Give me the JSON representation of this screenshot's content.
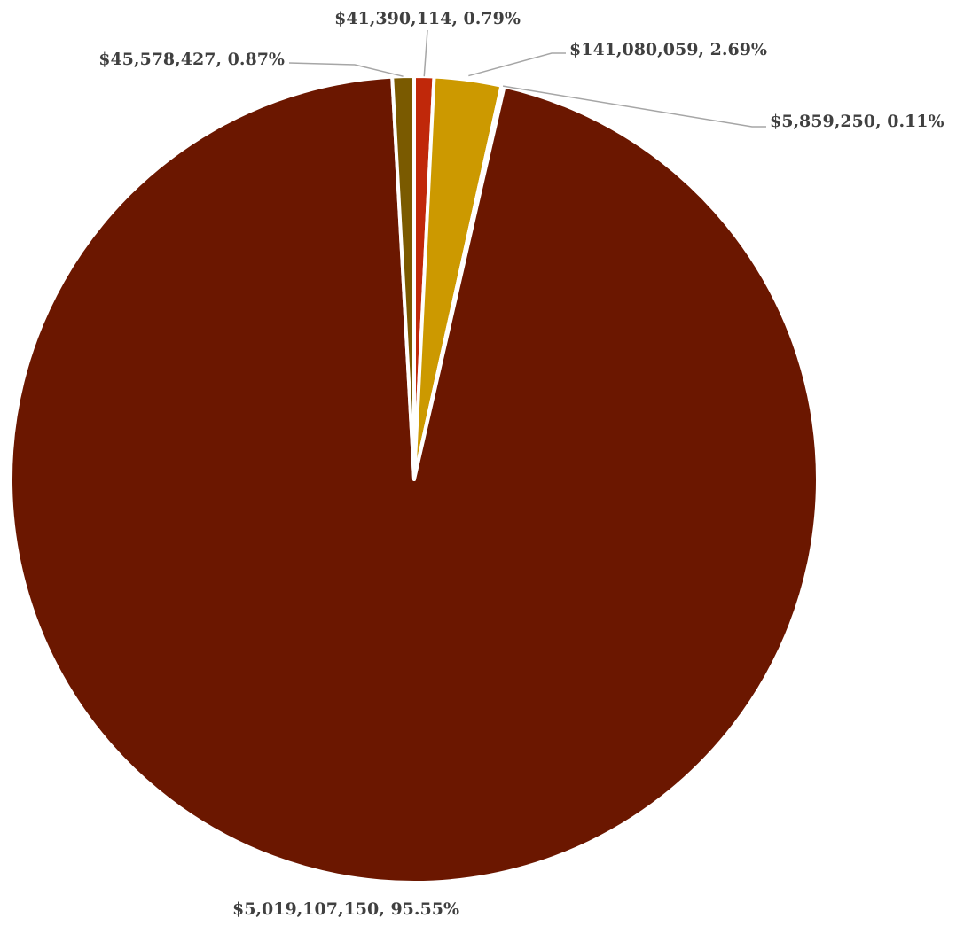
{
  "chart_data": {
    "type": "pie",
    "title": "",
    "slices": [
      {
        "value": 41390114,
        "percent": 0.79,
        "label": "$41,390,114, 0.79%",
        "color": "#c0280a"
      },
      {
        "value": 141080059,
        "percent": 2.69,
        "label": "$141,080,059, 2.69%",
        "color": "#cc9900"
      },
      {
        "value": 5859250,
        "percent": 0.11,
        "label": "$5,859,250, 0.11%",
        "color": "#e8dcc0"
      },
      {
        "value": 5019107150,
        "percent": 95.55,
        "label": "$5,019,107,150, 95.55%",
        "color": "#6b1700"
      },
      {
        "value": 45578427,
        "percent": 0.87,
        "label": "$45,578,427, 0.87%",
        "color": "#7a5a00"
      }
    ],
    "legend": "none"
  }
}
